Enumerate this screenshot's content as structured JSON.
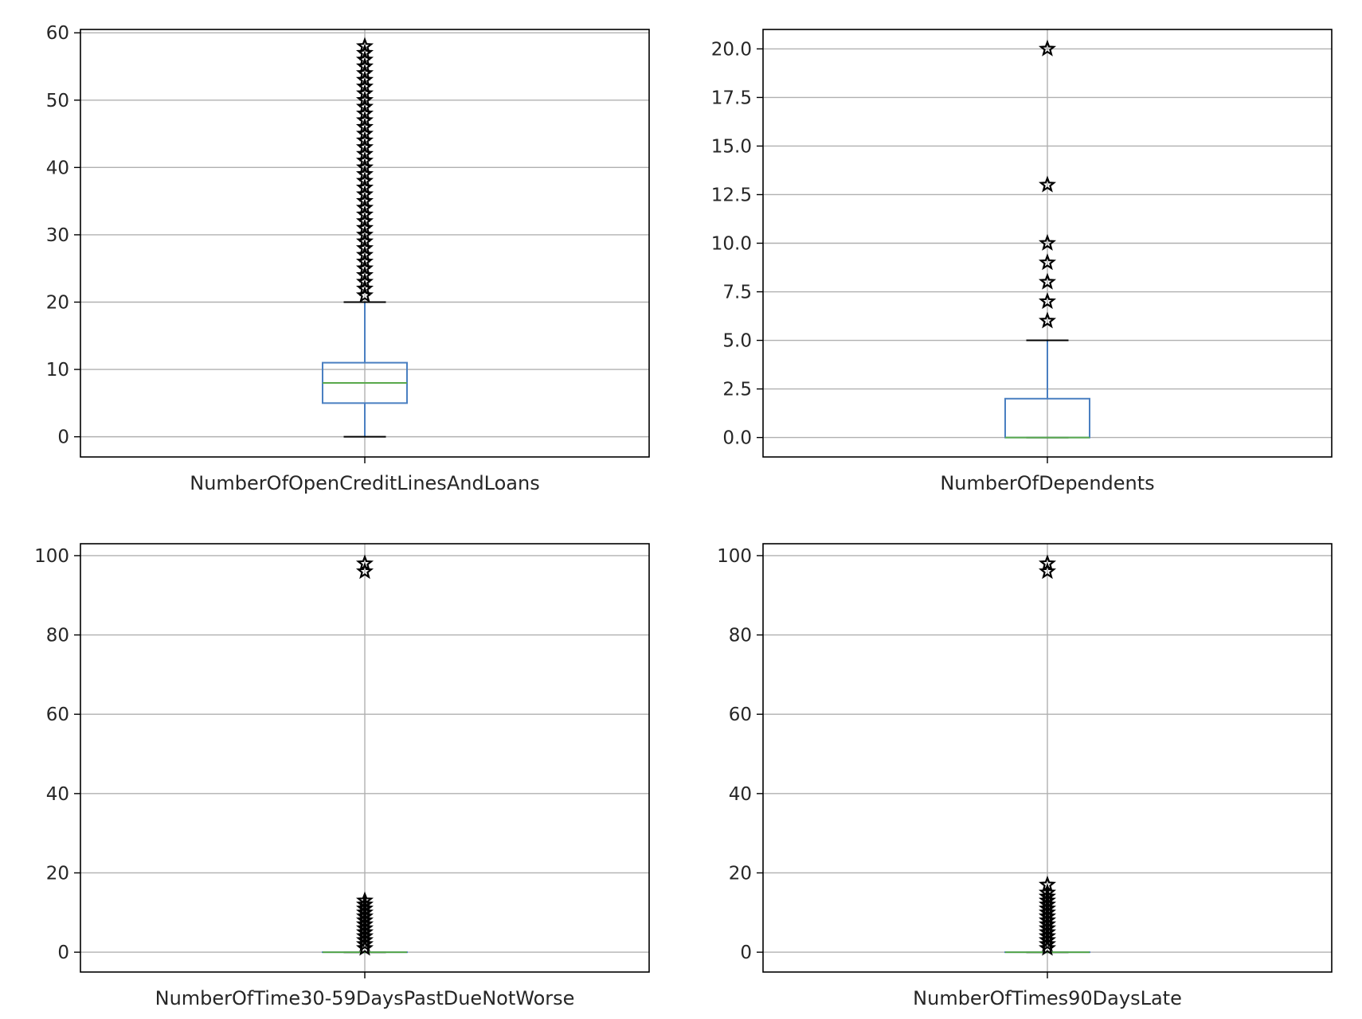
{
  "colors": {
    "box": "#4a7fc1",
    "median": "#59a84b",
    "cap": "#000000",
    "grid": "#b0b0b0",
    "flier": "#000000"
  },
  "chart_data": [
    {
      "type": "boxplot",
      "xlabel": "NumberOfOpenCreditLinesAndLoans",
      "ylim": [
        -3,
        60.5
      ],
      "yticks": [
        0,
        10,
        20,
        30,
        40,
        50,
        60
      ],
      "ytick_labels": [
        "0",
        "10",
        "20",
        "30",
        "40",
        "50",
        "60"
      ],
      "grid": true,
      "box": {
        "whisker_low": 0,
        "q1": 5,
        "median": 8,
        "q3": 11,
        "whisker_high": 20
      },
      "fliers": {
        "marker": "star",
        "from": 21,
        "to": 58,
        "step": 1
      }
    },
    {
      "type": "boxplot",
      "xlabel": "NumberOfDependents",
      "ylim": [
        -1,
        21
      ],
      "yticks": [
        0,
        2.5,
        5,
        7.5,
        10,
        12.5,
        15,
        17.5,
        20
      ],
      "ytick_labels": [
        "0.0",
        "2.5",
        "5.0",
        "7.5",
        "10.0",
        "12.5",
        "15.0",
        "17.5",
        "20.0"
      ],
      "grid": true,
      "box": {
        "whisker_low": 0,
        "q1": 0,
        "median": 0,
        "q3": 2,
        "whisker_high": 5
      },
      "fliers": {
        "marker": "star",
        "values": [
          6,
          7,
          8,
          9,
          10,
          13,
          20
        ]
      }
    },
    {
      "type": "boxplot",
      "xlabel": "NumberOfTime30-59DaysPastDueNotWorse",
      "ylim": [
        -5,
        103
      ],
      "yticks": [
        0,
        20,
        40,
        60,
        80,
        100
      ],
      "ytick_labels": [
        "0",
        "20",
        "40",
        "60",
        "80",
        "100"
      ],
      "grid": true,
      "box": {
        "whisker_low": 0,
        "q1": 0,
        "median": 0,
        "q3": 0,
        "whisker_high": 0
      },
      "fliers": {
        "marker": "star",
        "from": 1,
        "to": 13,
        "step": 1,
        "values": [
          96,
          98
        ]
      }
    },
    {
      "type": "boxplot",
      "xlabel": "NumberOfTimes90DaysLate",
      "ylim": [
        -5,
        103
      ],
      "yticks": [
        0,
        20,
        40,
        60,
        80,
        100
      ],
      "ytick_labels": [
        "0",
        "20",
        "40",
        "60",
        "80",
        "100"
      ],
      "grid": true,
      "box": {
        "whisker_low": 0,
        "q1": 0,
        "median": 0,
        "q3": 0,
        "whisker_high": 0
      },
      "fliers": {
        "marker": "star",
        "from": 1,
        "to": 15,
        "step": 1,
        "values": [
          17,
          96,
          98
        ]
      }
    }
  ]
}
